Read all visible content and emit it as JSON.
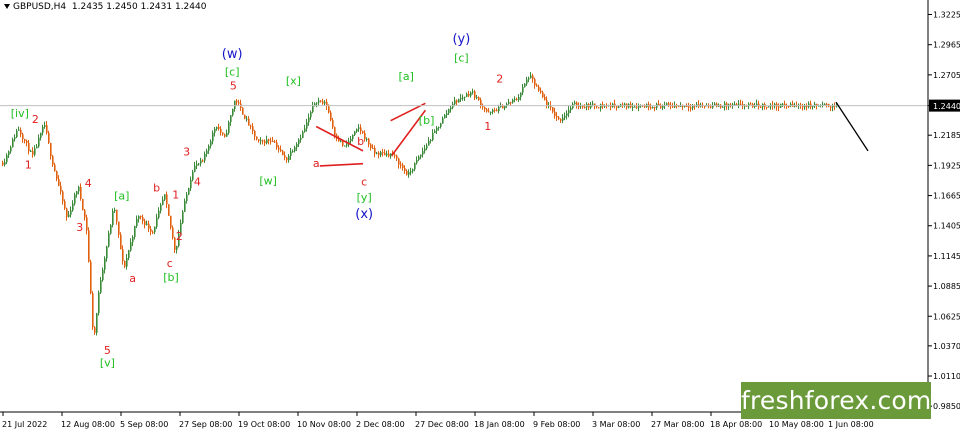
{
  "header": {
    "symbol": "GBPUSD,H4",
    "ohlc": "1.2435 1.2450 1.2431 1.2440"
  },
  "logo": {
    "text": "freshforex.com"
  },
  "colors": {
    "background": "#ffffff",
    "bull_candle": "#3a8a3a",
    "bear_candle": "#e06010",
    "wave_red": "#e02020",
    "wave_green": "#20c020",
    "wave_blue": "#1515c8",
    "price_line": "#c0c0c0",
    "forecast": "#000000",
    "logo_bg": "#6a9a3a"
  },
  "chart_data": {
    "type": "candlestick",
    "ylim": [
      0.98,
      1.335
    ],
    "price_ticks": [
      "1.3225",
      "1.2965",
      "1.2705",
      "1.2440",
      "1.2185",
      "1.1925",
      "1.1665",
      "1.1405",
      "1.1145",
      "1.0885",
      "1.0625",
      "1.0370",
      "1.0110",
      "0.9850"
    ],
    "current_price": "1.2440",
    "time_ticks": [
      "21 Jul 2022",
      "12 Aug 08:00",
      "5 Sep 08:00",
      "27 Sep 08:00",
      "19 Oct 08:00",
      "10 Nov 08:00",
      "2 Dec 08:00",
      "27 Dec 08:00",
      "18 Jan 08:00",
      "9 Feb 08:00",
      "3 Mar 08:00",
      "27 Mar 08:00",
      "18 Apr 08:00",
      "10 May 08:00",
      "1 Jun 08:00"
    ],
    "path_keypoints": [
      {
        "t": 0.0,
        "p": 1.195
      },
      {
        "t": 0.06,
        "p": 1.225
      },
      {
        "t": 0.12,
        "p": 1.2
      },
      {
        "t": 0.17,
        "p": 1.228
      },
      {
        "t": 0.2,
        "p": 1.198
      },
      {
        "t": 0.265,
        "p": 1.146
      },
      {
        "t": 0.31,
        "p": 1.175
      },
      {
        "t": 0.345,
        "p": 1.14
      },
      {
        "t": 0.375,
        "p": 1.04
      },
      {
        "t": 0.4,
        "p": 1.09
      },
      {
        "t": 0.46,
        "p": 1.158
      },
      {
        "t": 0.5,
        "p": 1.103
      },
      {
        "t": 0.56,
        "p": 1.15
      },
      {
        "t": 0.62,
        "p": 1.135
      },
      {
        "t": 0.67,
        "p": 1.167
      },
      {
        "t": 0.715,
        "p": 1.118
      },
      {
        "t": 0.745,
        "p": 1.152
      },
      {
        "t": 0.79,
        "p": 1.191
      },
      {
        "t": 0.83,
        "p": 1.196
      },
      {
        "t": 0.885,
        "p": 1.228
      },
      {
        "t": 0.92,
        "p": 1.215
      },
      {
        "t": 0.965,
        "p": 1.25
      },
      {
        "t": 1.06,
        "p": 1.212
      },
      {
        "t": 1.12,
        "p": 1.215
      },
      {
        "t": 1.175,
        "p": 1.197
      },
      {
        "t": 1.25,
        "p": 1.222
      },
      {
        "t": 1.3,
        "p": 1.249
      },
      {
        "t": 1.345,
        "p": 1.245
      },
      {
        "t": 1.38,
        "p": 1.219
      },
      {
        "t": 1.42,
        "p": 1.208
      },
      {
        "t": 1.48,
        "p": 1.225
      },
      {
        "t": 1.545,
        "p": 1.203
      },
      {
        "t": 1.62,
        "p": 1.202
      },
      {
        "t": 1.685,
        "p": 1.184
      },
      {
        "t": 1.75,
        "p": 1.206
      },
      {
        "t": 1.87,
        "p": 1.246
      },
      {
        "t": 1.95,
        "p": 1.256
      },
      {
        "t": 2.02,
        "p": 1.237
      },
      {
        "t": 2.14,
        "p": 1.25
      },
      {
        "t": 2.19,
        "p": 1.27
      },
      {
        "t": 2.26,
        "p": 1.246
      },
      {
        "t": 2.315,
        "p": 1.231
      },
      {
        "t": 2.375,
        "p": 1.245
      },
      {
        "t": 2.41,
        "p": 1.244
      }
    ],
    "wave_labels": [
      {
        "text": "[iv]",
        "color": "green",
        "t": 0.07,
        "p": 1.234
      },
      {
        "text": "1",
        "color": "red",
        "t": 0.105,
        "p": 1.19
      },
      {
        "text": "2",
        "color": "red",
        "t": 0.135,
        "p": 1.229
      },
      {
        "text": "4",
        "color": "red",
        "t": 0.355,
        "p": 1.174
      },
      {
        "text": "3",
        "color": "red",
        "t": 0.32,
        "p": 1.136
      },
      {
        "text": "5",
        "color": "red",
        "t": 0.435,
        "p": 1.03
      },
      {
        "text": "[v]",
        "color": "green",
        "t": 0.435,
        "p": 1.019
      },
      {
        "text": "[a]",
        "color": "green",
        "t": 0.495,
        "p": 1.163
      },
      {
        "text": "a",
        "color": "red",
        "t": 0.54,
        "p": 1.092
      },
      {
        "text": "b",
        "color": "red",
        "t": 0.64,
        "p": 1.17
      },
      {
        "text": "c",
        "color": "red",
        "t": 0.695,
        "p": 1.105
      },
      {
        "text": "[b]",
        "color": "green",
        "t": 0.7,
        "p": 1.093
      },
      {
        "text": "1",
        "color": "red",
        "t": 0.72,
        "p": 1.164
      },
      {
        "text": "2",
        "color": "red",
        "t": 0.735,
        "p": 1.128
      },
      {
        "text": "3",
        "color": "red",
        "t": 0.765,
        "p": 1.201
      },
      {
        "text": "4",
        "color": "red",
        "t": 0.81,
        "p": 1.175
      },
      {
        "text": "5",
        "color": "red",
        "t": 0.96,
        "p": 1.258
      },
      {
        "text": "[c]",
        "color": "green",
        "t": 0.955,
        "p": 1.27
      },
      {
        "text": "(w)",
        "color": "blue",
        "t": 0.955,
        "p": 1.285
      },
      {
        "text": "[w]",
        "color": "green",
        "t": 1.105,
        "p": 1.176
      },
      {
        "text": "[x]",
        "color": "green",
        "t": 1.21,
        "p": 1.262
      },
      {
        "text": "a",
        "color": "red",
        "t": 1.305,
        "p": 1.191
      },
      {
        "text": "b",
        "color": "red",
        "t": 1.49,
        "p": 1.21
      },
      {
        "text": "c",
        "color": "red",
        "t": 1.505,
        "p": 1.175
      },
      {
        "text": "[y]",
        "color": "green",
        "t": 1.505,
        "p": 1.162
      },
      {
        "text": "(x)",
        "color": "blue",
        "t": 1.505,
        "p": 1.147
      },
      {
        "text": "[a]",
        "color": "green",
        "t": 1.68,
        "p": 1.266
      },
      {
        "text": "[b]",
        "color": "green",
        "t": 1.765,
        "p": 1.228
      },
      {
        "text": "[c]",
        "color": "green",
        "t": 1.91,
        "p": 1.282
      },
      {
        "text": "(y)",
        "color": "blue",
        "t": 1.91,
        "p": 1.298
      },
      {
        "text": "1",
        "color": "red",
        "t": 2.02,
        "p": 1.223
      },
      {
        "text": "2",
        "color": "red",
        "t": 2.07,
        "p": 1.264
      }
    ]
  }
}
